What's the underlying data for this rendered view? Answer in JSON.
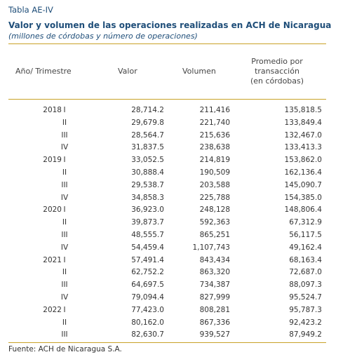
{
  "header": {
    "label": "Tabla AE-IV",
    "title": "Valor y volumen de las operaciones realizadas en ACH de Nicaragua",
    "subtitle": "(millones de córdobas y número de operaciones)"
  },
  "table": {
    "columns": [
      "Año/ Trimestre",
      "Valor",
      "Volumen",
      [
        "Promedio por",
        "transacción",
        "(en córdobas)"
      ]
    ],
    "groups": [
      {
        "year": "2018",
        "rows": [
          [
            "I",
            "28,714.2",
            "211,416",
            "135,818.5"
          ],
          [
            "II",
            "29,679.8",
            "221,740",
            "133,849.4"
          ],
          [
            "III",
            "28,564.7",
            "215,636",
            "132,467.0"
          ],
          [
            "IV",
            "31,837.5",
            "238,638",
            "133,413.3"
          ]
        ]
      },
      {
        "year": "2019",
        "rows": [
          [
            "I",
            "33,052.5",
            "214,819",
            "153,862.0"
          ],
          [
            "II",
            "30,888.4",
            "190,509",
            "162,136.4"
          ],
          [
            "III",
            "29,538.7",
            "203,588",
            "145,090.7"
          ],
          [
            "IV",
            "34,858.3",
            "225,788",
            "154,385.0"
          ]
        ]
      },
      {
        "year": "2020",
        "rows": [
          [
            "I",
            "36,923.0",
            "248,128",
            "148,806.4"
          ],
          [
            "II",
            "39,873.7",
            "592,363",
            "67,312.9"
          ],
          [
            "III",
            "48,555.7",
            "865,251",
            "56,117.5"
          ],
          [
            "IV",
            "54,459.4",
            "1,107,743",
            "49,162.4"
          ]
        ]
      },
      {
        "year": "2021",
        "rows": [
          [
            "I",
            "57,491.4",
            "843,434",
            "68,163.4"
          ],
          [
            "II",
            "62,752.2",
            "863,320",
            "72,687.0"
          ],
          [
            "III",
            "64,697.5",
            "734,387",
            "88,097.3"
          ],
          [
            "IV",
            "79,094.4",
            "827,999",
            "95,524.7"
          ]
        ]
      },
      {
        "year": "2022",
        "rows": [
          [
            "I",
            "77,423.0",
            "808,281",
            "95,787.3"
          ],
          [
            "II",
            "80,162.0",
            "867,336",
            "92,423.2"
          ],
          [
            "III",
            "82,630.7",
            "939,527",
            "87,949.2"
          ]
        ]
      }
    ]
  },
  "footer": "Fuente: ACH de Nicaragua S.A."
}
